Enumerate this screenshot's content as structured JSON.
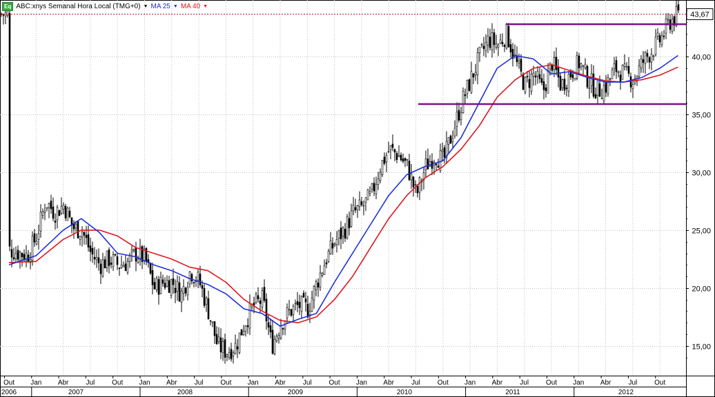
{
  "legend": {
    "symbol_icon": "Eq",
    "title": "ABC:xnys Semanal Hora Local (TMG+0)",
    "ma25_label": "MA 25",
    "ma40_label": "MA 40",
    "caret": "▼"
  },
  "last_price_label": "43,67",
  "colors": {
    "ma25": "#1c2fd8",
    "ma40": "#e0161b",
    "levels": "#7a0f8a",
    "candles": "#000000",
    "grid": "#b8c0c8",
    "last_price_line": "#b01010"
  },
  "chart_data": {
    "type": "candlestick",
    "period": "weekly",
    "ylim": [
      13.2,
      44.3
    ],
    "y_ticks": [
      15,
      20,
      25,
      30,
      35,
      40
    ],
    "y_tick_labels": [
      "15,00",
      "20,00",
      "25,00",
      "30,00",
      "35,00",
      "40,00"
    ],
    "x_month_labels": [
      "Out",
      "Jan",
      "Abr",
      "Jul",
      "Out",
      "Jan",
      "Abr",
      "Jul",
      "Out",
      "Jan",
      "Abr",
      "Jul",
      "Out",
      "Jan",
      "Abr",
      "Jul",
      "Out",
      "Jan",
      "Abr",
      "Jul",
      "Out",
      "Jan",
      "Abr",
      "Jul",
      "Out"
    ],
    "x_year_labels": [
      "2006",
      "2007",
      "2008",
      "2009",
      "2010",
      "2011",
      "2012"
    ],
    "last_price": 43.67,
    "horizontal_levels": [
      {
        "value": 35.9,
        "from": "Ago 2010",
        "to": "Dez 2012"
      },
      {
        "value": 42.8,
        "from": "Fev 2011",
        "to": "Dez 2012"
      }
    ],
    "approx_weekly_path": [
      [
        "2006-10",
        23.3
      ],
      [
        "2006-12",
        22.8
      ],
      [
        "2007-01",
        24.5
      ],
      [
        "2007-02",
        27.5
      ],
      [
        "2007-03",
        26.5
      ],
      [
        "2007-04",
        27.2
      ],
      [
        "2007-05",
        25.2
      ],
      [
        "2007-06",
        25.0
      ],
      [
        "2007-07",
        23.0
      ],
      [
        "2007-08",
        22.0
      ],
      [
        "2007-09",
        22.5
      ],
      [
        "2007-10",
        22.0
      ],
      [
        "2007-11",
        22.2
      ],
      [
        "2007-12",
        23.0
      ],
      [
        "2008-01",
        22.5
      ],
      [
        "2008-02",
        20.0
      ],
      [
        "2008-03",
        20.5
      ],
      [
        "2008-04",
        20.5
      ],
      [
        "2008-05",
        19.5
      ],
      [
        "2008-06",
        21.5
      ],
      [
        "2008-07",
        20.5
      ],
      [
        "2008-08",
        18.0
      ],
      [
        "2008-09",
        15.0
      ],
      [
        "2008-10",
        14.5
      ],
      [
        "2008-11",
        15.0
      ],
      [
        "2008-12",
        17.0
      ],
      [
        "2009-01",
        18.5
      ],
      [
        "2009-02",
        19.0
      ],
      [
        "2009-03",
        15.0
      ],
      [
        "2009-04",
        17.0
      ],
      [
        "2009-05",
        18.0
      ],
      [
        "2009-06",
        18.5
      ],
      [
        "2009-07",
        18.2
      ],
      [
        "2009-08",
        20.5
      ],
      [
        "2009-09",
        22.5
      ],
      [
        "2009-10",
        24.0
      ],
      [
        "2009-11",
        25.0
      ],
      [
        "2009-12",
        26.5
      ],
      [
        "2010-01",
        27.0
      ],
      [
        "2010-02",
        28.0
      ],
      [
        "2010-03",
        30.5
      ],
      [
        "2010-04",
        32.0
      ],
      [
        "2010-05",
        31.5
      ],
      [
        "2010-06",
        30.5
      ],
      [
        "2010-07",
        28.0
      ],
      [
        "2010-08",
        30.5
      ],
      [
        "2010-09",
        31.5
      ],
      [
        "2010-10",
        31.0
      ],
      [
        "2010-11",
        33.5
      ],
      [
        "2010-12",
        36.0
      ],
      [
        "2011-01",
        38.0
      ],
      [
        "2011-02",
        40.0
      ],
      [
        "2011-03",
        41.5
      ],
      [
        "2011-04",
        41.0
      ],
      [
        "2011-05",
        42.0
      ],
      [
        "2011-06",
        39.5
      ],
      [
        "2011-07",
        37.5
      ],
      [
        "2011-08",
        38.5
      ],
      [
        "2011-09",
        37.0
      ],
      [
        "2011-10",
        39.5
      ],
      [
        "2011-11",
        37.5
      ],
      [
        "2011-12",
        38.5
      ],
      [
        "2012-01",
        39.5
      ],
      [
        "2012-02",
        38.0
      ],
      [
        "2012-03",
        37.0
      ],
      [
        "2012-04",
        37.5
      ],
      [
        "2012-05",
        39.0
      ],
      [
        "2012-06",
        38.5
      ],
      [
        "2012-07",
        38.0
      ],
      [
        "2012-08",
        39.5
      ],
      [
        "2012-09",
        40.5
      ],
      [
        "2012-10",
        41.5
      ],
      [
        "2012-11",
        43.0
      ],
      [
        "2012-12",
        43.67
      ]
    ],
    "ma25_path": [
      [
        "2006-10",
        22.0
      ],
      [
        "2007-01",
        22.8
      ],
      [
        "2007-04",
        25.0
      ],
      [
        "2007-06",
        26.0
      ],
      [
        "2007-08",
        24.8
      ],
      [
        "2007-10",
        23.0
      ],
      [
        "2007-12",
        22.7
      ],
      [
        "2008-02",
        22.0
      ],
      [
        "2008-04",
        21.5
      ],
      [
        "2008-06",
        20.8
      ],
      [
        "2008-08",
        20.3
      ],
      [
        "2008-10",
        19.5
      ],
      [
        "2008-12",
        18.2
      ],
      [
        "2009-02",
        17.8
      ],
      [
        "2009-04",
        16.7
      ],
      [
        "2009-06",
        17.3
      ],
      [
        "2009-08",
        17.8
      ],
      [
        "2009-10",
        20.5
      ],
      [
        "2009-12",
        23.0
      ],
      [
        "2010-02",
        25.5
      ],
      [
        "2010-04",
        28.0
      ],
      [
        "2010-06",
        29.8
      ],
      [
        "2010-08",
        30.5
      ],
      [
        "2010-10",
        31.0
      ],
      [
        "2010-12",
        33.0
      ],
      [
        "2011-02",
        36.0
      ],
      [
        "2011-04",
        39.0
      ],
      [
        "2011-06",
        40.1
      ],
      [
        "2011-08",
        39.8
      ],
      [
        "2011-10",
        38.5
      ],
      [
        "2011-12",
        38.7
      ],
      [
        "2012-02",
        38.2
      ],
      [
        "2012-04",
        37.8
      ],
      [
        "2012-06",
        37.8
      ],
      [
        "2012-08",
        38.2
      ],
      [
        "2012-10",
        39.0
      ],
      [
        "2012-12",
        40.1
      ]
    ],
    "ma40_path": [
      [
        "2006-10",
        22.2
      ],
      [
        "2007-01",
        22.3
      ],
      [
        "2007-04",
        24.2
      ],
      [
        "2007-06",
        25.0
      ],
      [
        "2007-08",
        25.0
      ],
      [
        "2007-10",
        24.5
      ],
      [
        "2007-12",
        23.5
      ],
      [
        "2008-02",
        23.0
      ],
      [
        "2008-04",
        22.5
      ],
      [
        "2008-06",
        21.8
      ],
      [
        "2008-08",
        21.5
      ],
      [
        "2008-10",
        20.5
      ],
      [
        "2008-12",
        19.0
      ],
      [
        "2009-02",
        18.0
      ],
      [
        "2009-04",
        17.2
      ],
      [
        "2009-06",
        17.0
      ],
      [
        "2009-08",
        17.5
      ],
      [
        "2009-10",
        19.0
      ],
      [
        "2009-12",
        21.0
      ],
      [
        "2010-02",
        23.5
      ],
      [
        "2010-04",
        26.0
      ],
      [
        "2010-06",
        28.0
      ],
      [
        "2010-08",
        29.5
      ],
      [
        "2010-10",
        30.5
      ],
      [
        "2010-12",
        32.0
      ],
      [
        "2011-02",
        34.0
      ],
      [
        "2011-04",
        36.5
      ],
      [
        "2011-06",
        38.0
      ],
      [
        "2011-08",
        39.0
      ],
      [
        "2011-10",
        39.3
      ],
      [
        "2011-12",
        38.8
      ],
      [
        "2012-02",
        38.3
      ],
      [
        "2012-04",
        37.9
      ],
      [
        "2012-06",
        37.8
      ],
      [
        "2012-08",
        38.0
      ],
      [
        "2012-10",
        38.4
      ],
      [
        "2012-12",
        39.1
      ]
    ]
  }
}
